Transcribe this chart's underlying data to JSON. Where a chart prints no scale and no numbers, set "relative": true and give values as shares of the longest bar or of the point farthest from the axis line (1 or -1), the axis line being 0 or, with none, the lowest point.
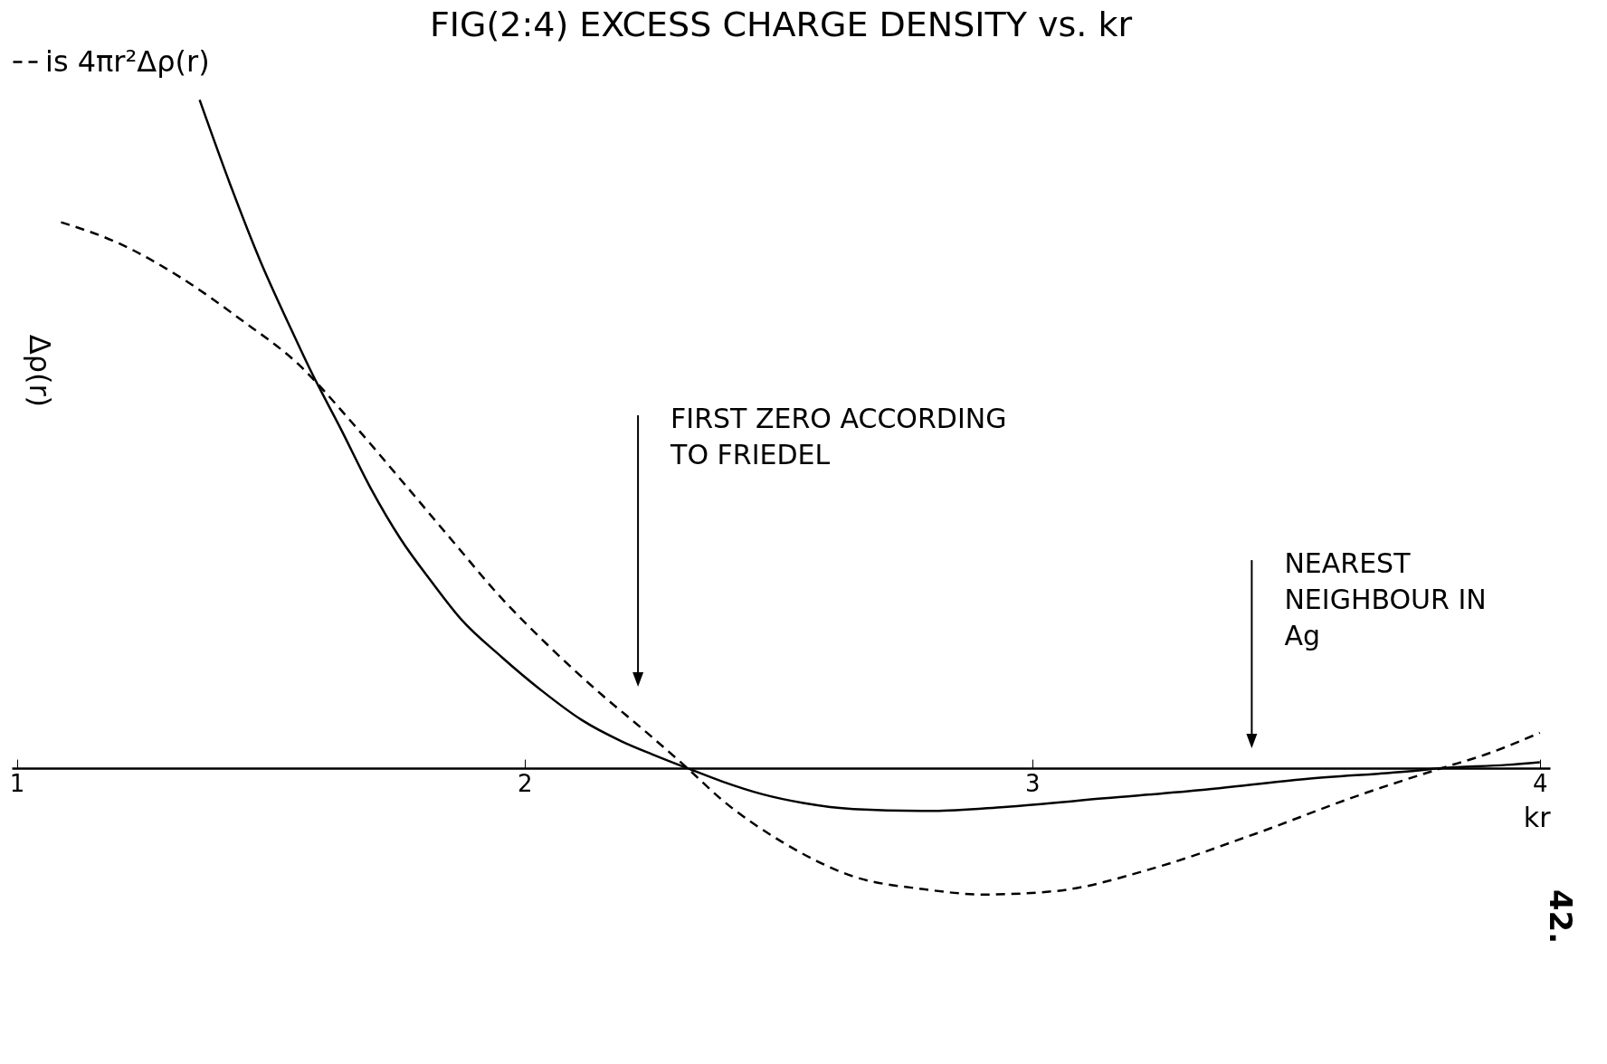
{
  "chart_data": {
    "type": "line",
    "title": "FIG(2:4) EXCESS CHARGE DENSITY vs. kr",
    "xlabel": "kr",
    "ylabel": "Δρ(r)",
    "relative": true,
    "legend": "top",
    "xlim": [
      0.99,
      4.02
    ],
    "xticks": [
      1,
      2,
      3,
      4
    ],
    "series": [
      {
        "color": "#000000",
        "line_style": "solid",
        "x": [
          1.36,
          1.42,
          1.479,
          1.539,
          1.578,
          1.638,
          1.697,
          1.756,
          1.816,
          1.875,
          1.954,
          2.034,
          2.113,
          2.192,
          2.251,
          2.321,
          2.39,
          2.469,
          2.549,
          2.648,
          2.806,
          2.945,
          3.143,
          3.341,
          3.539,
          3.737,
          3.806,
          3.935,
          4.0
        ],
        "values": [
          1.0,
          0.874,
          0.76,
          0.659,
          0.596,
          0.508,
          0.419,
          0.343,
          0.28,
          0.223,
          0.167,
          0.116,
          0.072,
          0.04,
          0.021,
          0,
          -0.02,
          -0.039,
          -0.052,
          -0.061,
          -0.064,
          -0.058,
          -0.045,
          -0.032,
          -0.016,
          -0.005,
          0,
          0.005,
          0.009
        ]
      },
      {
        "name": "is 4πr²Δρ(r)",
        "color": "#000000",
        "line_style": "dashed",
        "x": [
          1.087,
          1.202,
          1.321,
          1.44,
          1.558,
          1.657,
          1.756,
          1.855,
          1.954,
          2.053,
          2.152,
          2.232,
          2.321,
          2.39,
          2.509,
          2.648,
          2.786,
          2.905,
          3.044,
          3.242,
          3.44,
          3.638,
          3.806,
          3.895,
          4.0
        ],
        "values": [
          0.817,
          0.785,
          0.735,
          0.672,
          0.602,
          0.52,
          0.432,
          0.343,
          0.255,
          0.179,
          0.11,
          0.059,
          0,
          -0.048,
          -0.111,
          -0.162,
          -0.181,
          -0.189,
          -0.184,
          -0.149,
          -0.098,
          -0.042,
          0,
          0.021,
          0.053
        ]
      }
    ],
    "annotations": [
      "FIRST ZERO ACCORDING\nTO FRIEDEL",
      "NEAREST\nNEIGHBOUR IN\n    Ag",
      "42."
    ]
  }
}
